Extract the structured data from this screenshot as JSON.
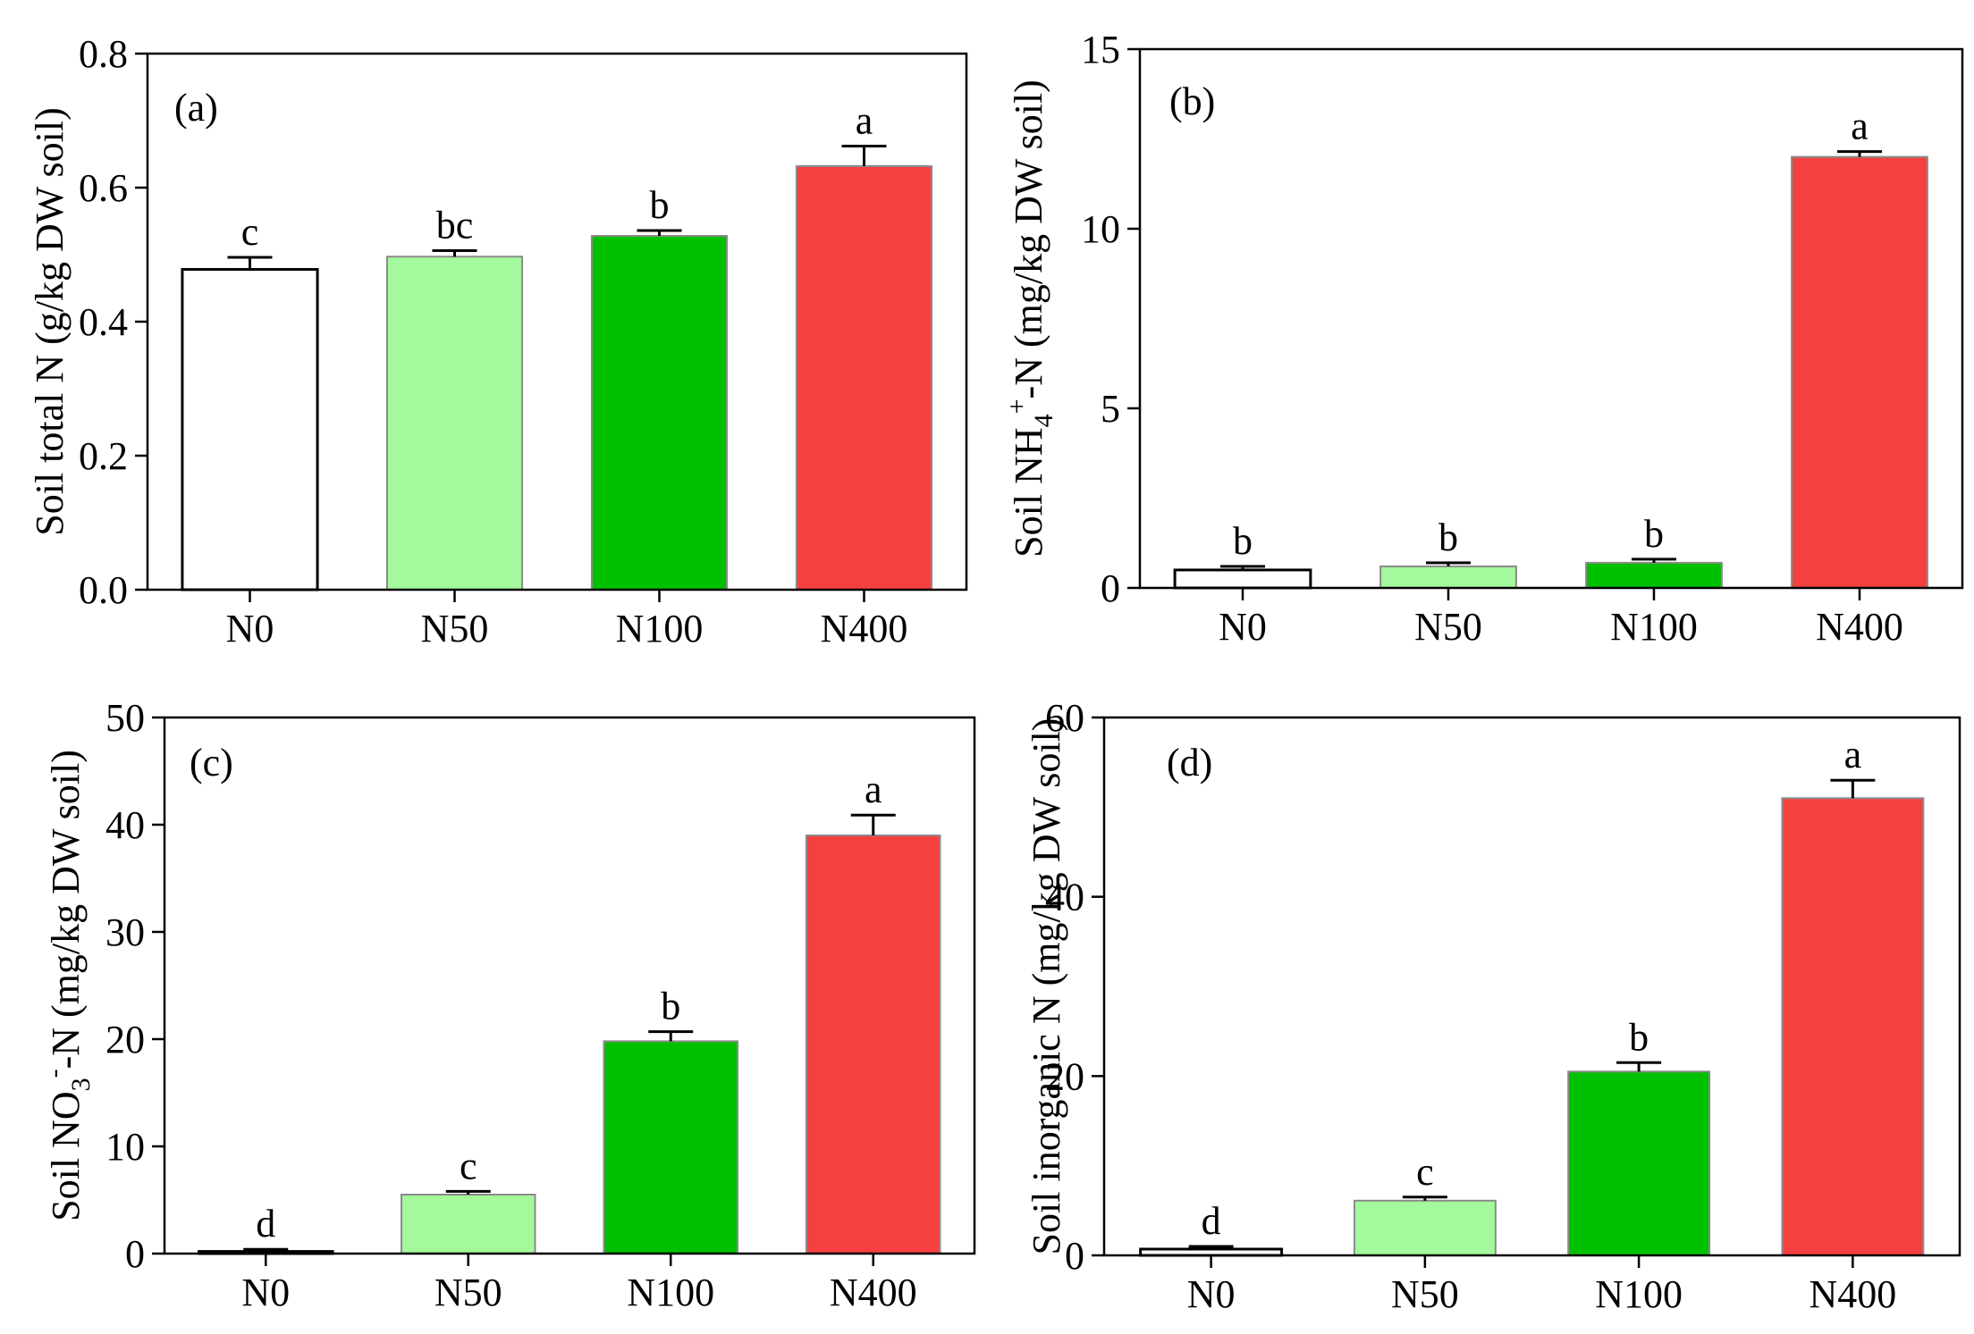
{
  "chart_data": [
    {
      "type": "bar",
      "panel_label": "(a)",
      "title": "",
      "xlabel": "",
      "ylabel": {
        "before": "Soil total N  (g/kg DW soil)",
        "sub": "",
        "sup": "",
        "after": ""
      },
      "categories": [
        "N0",
        "N50",
        "N100",
        "N400"
      ],
      "values": [
        0.478,
        0.497,
        0.528,
        0.632
      ],
      "errors": [
        0.018,
        0.009,
        0.008,
        0.03
      ],
      "significance": [
        "c",
        "bc",
        "b",
        "a"
      ],
      "colors": [
        "#ffffff",
        "#a3f99b",
        "#00c000",
        "#f54040"
      ],
      "ylim": [
        0,
        0.8
      ],
      "yticks": [
        0.0,
        0.2,
        0.4,
        0.6,
        0.8
      ],
      "ytick_labels": [
        "0.0",
        "0.2",
        "0.4",
        "0.6",
        "0.8"
      ]
    },
    {
      "type": "bar",
      "panel_label": "(b)",
      "title": "",
      "xlabel": "",
      "ylabel": {
        "before": "Soil NH",
        "sub": "4",
        "sup": "+",
        "after": "-N  (mg/kg DW soil)"
      },
      "categories": [
        "N0",
        "N50",
        "N100",
        "N400"
      ],
      "values": [
        0.5,
        0.6,
        0.7,
        12.0
      ],
      "errors": [
        0.1,
        0.1,
        0.1,
        0.15
      ],
      "significance": [
        "b",
        "b",
        "b",
        "a"
      ],
      "colors": [
        "#ffffff",
        "#a3f99b",
        "#00c000",
        "#f54040"
      ],
      "ylim": [
        0,
        15
      ],
      "yticks": [
        0,
        5,
        10,
        15
      ],
      "ytick_labels": [
        "0",
        "5",
        "10",
        "15"
      ]
    },
    {
      "type": "bar",
      "panel_label": "(c)",
      "title": "",
      "xlabel": "",
      "ylabel": {
        "before": "Soil NO",
        "sub": "3",
        "sup": "-",
        "after": "-N  (mg/kg DW soil)"
      },
      "categories": [
        "N0",
        "N50",
        "N100",
        "N400"
      ],
      "values": [
        0.2,
        5.5,
        19.8,
        39.0
      ],
      "errors": [
        0.2,
        0.3,
        0.9,
        1.9
      ],
      "significance": [
        "d",
        "c",
        "b",
        "a"
      ],
      "colors": [
        "#ffffff",
        "#a3f99b",
        "#00c000",
        "#f54040"
      ],
      "ylim": [
        0,
        50
      ],
      "yticks": [
        0,
        10,
        20,
        30,
        40,
        50
      ],
      "ytick_labels": [
        "0",
        "10",
        "20",
        "30",
        "40",
        "50"
      ]
    },
    {
      "type": "bar",
      "panel_label": "(d)",
      "title": "",
      "xlabel": "",
      "ylabel": {
        "before": "Soil inorganic N (mg/kg DW soil)",
        "sub": "",
        "sup": "",
        "after": ""
      },
      "categories": [
        "N0",
        "N50",
        "N100",
        "N400"
      ],
      "values": [
        0.7,
        6.1,
        20.5,
        51.0
      ],
      "errors": [
        0.3,
        0.4,
        1.0,
        2.0
      ],
      "significance": [
        "d",
        "c",
        "b",
        "a"
      ],
      "colors": [
        "#ffffff",
        "#a3f99b",
        "#00c000",
        "#f54040"
      ],
      "ylim": [
        0,
        60
      ],
      "yticks": [
        0,
        20,
        40,
        60
      ],
      "ytick_labels": [
        "0",
        "20",
        "40",
        "60"
      ]
    }
  ]
}
